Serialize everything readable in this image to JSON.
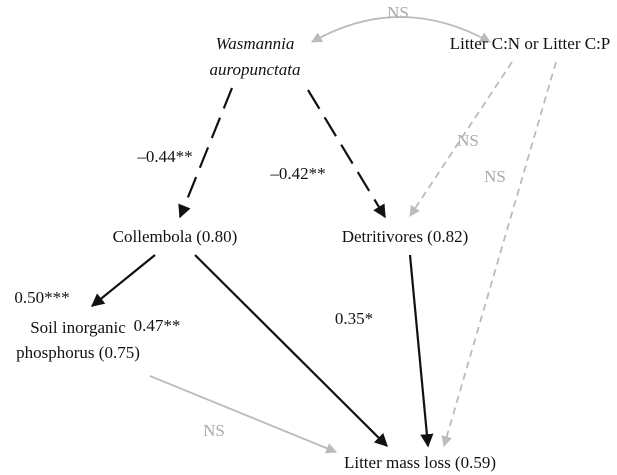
{
  "nodes": [
    {
      "lines": [
        "Wasmannia",
        "auropunctata"
      ]
    },
    {
      "lines": [
        "Litter C:N or Litter C:P"
      ]
    },
    {
      "lines": [
        "Collembola (0.80)"
      ]
    },
    {
      "lines": [
        "Detritivores (0.82)"
      ]
    },
    {
      "lines": [
        "Soil inorganic",
        "phosphorus (0.75)"
      ]
    },
    {
      "lines": [
        "Litter mass loss (0.59)"
      ]
    }
  ],
  "edges": [
    {
      "label": "NS"
    },
    {
      "label": "–0.44**"
    },
    {
      "label": "–0.42**"
    },
    {
      "label": "NS"
    },
    {
      "label": "NS"
    },
    {
      "label": "0.50***"
    },
    {
      "label": "0.47**"
    },
    {
      "label": "0.35*"
    },
    {
      "label": "NS"
    }
  ]
}
